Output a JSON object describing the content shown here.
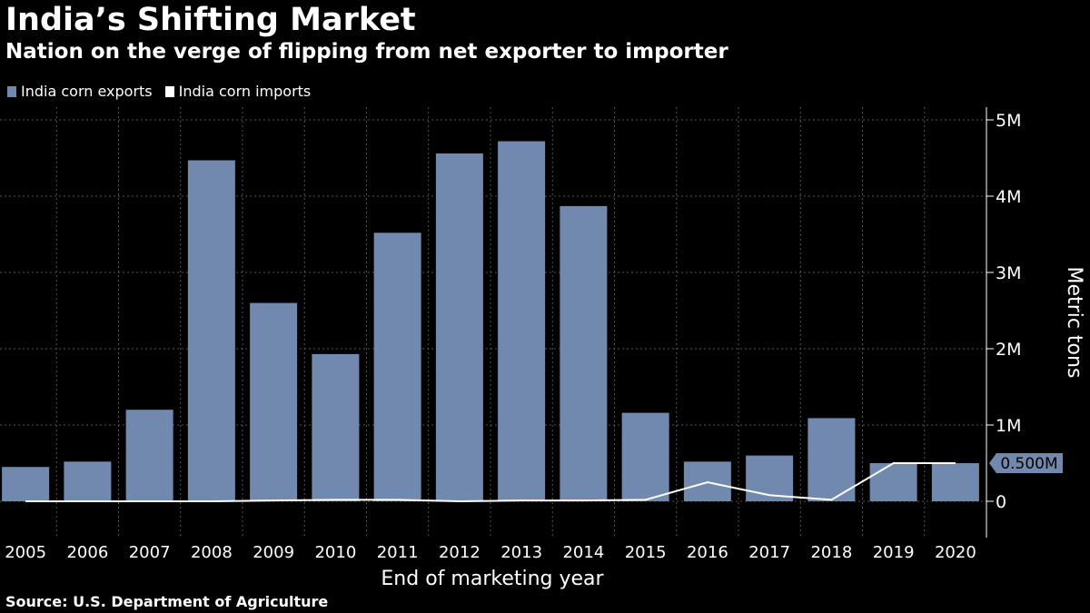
{
  "header": {
    "title": "India’s Shifting Market",
    "subtitle": "Nation on the verge of flipping from net exporter to importer"
  },
  "footer": {
    "source": "Source: U.S. Department of Agriculture"
  },
  "colors": {
    "background": "#000000",
    "exports_bar": "#7189ae",
    "imports_line": "#ffffff",
    "grid": "#555555"
  },
  "chart_data": {
    "type": "bar",
    "xlabel": "End of marketing year",
    "ylabel": "Metric tons",
    "ylim": [
      0,
      5000000
    ],
    "yticks": [
      0,
      1000000,
      2000000,
      3000000,
      4000000,
      5000000
    ],
    "ytick_labels": [
      "0",
      "1M",
      "2M",
      "3M",
      "4M",
      "5M"
    ],
    "grid": true,
    "legend_position": "top-left",
    "categories": [
      "2005",
      "2006",
      "2007",
      "2008",
      "2009",
      "2010",
      "2011",
      "2012",
      "2013",
      "2014",
      "2015",
      "2016",
      "2017",
      "2018",
      "2019",
      "2020"
    ],
    "series": [
      {
        "name": "India corn exports",
        "type": "bar",
        "color": "#7189ae",
        "values": [
          450000,
          520000,
          1200000,
          4470000,
          2600000,
          1930000,
          3520000,
          4560000,
          4720000,
          3870000,
          1160000,
          520000,
          600000,
          1090000,
          500000,
          500000
        ]
      },
      {
        "name": "India corn imports",
        "type": "line",
        "color": "#ffffff",
        "values": [
          0,
          0,
          0,
          0,
          10000,
          20000,
          20000,
          0,
          10000,
          10000,
          20000,
          250000,
          80000,
          20000,
          500000,
          500000
        ]
      }
    ],
    "annotations": [
      {
        "label": "0.500M",
        "value": 500000
      }
    ]
  }
}
